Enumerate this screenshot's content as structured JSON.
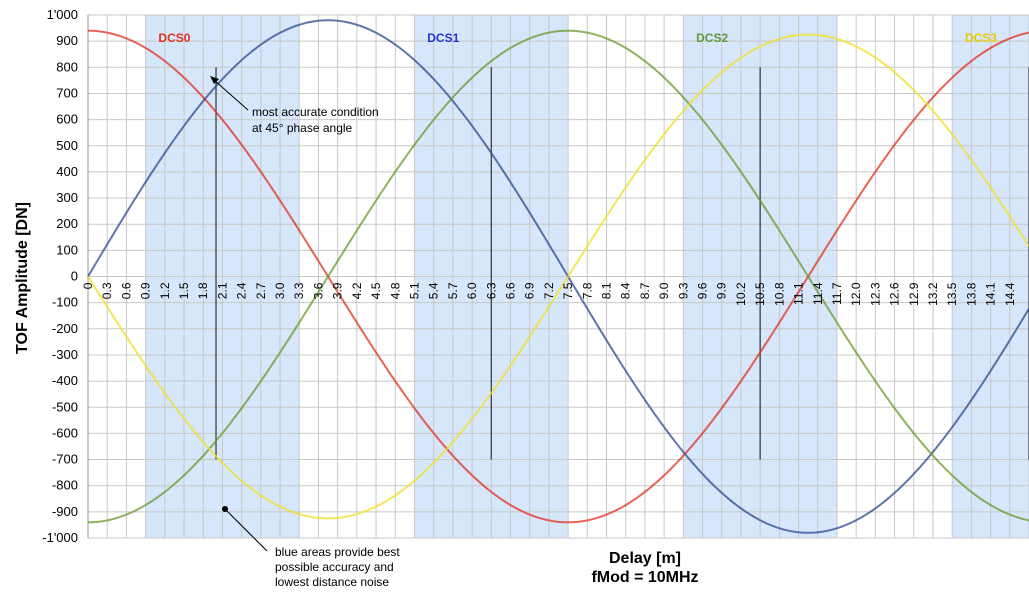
{
  "chart_data": {
    "type": "line",
    "ylabel": "TOF Amplitude [DN]",
    "xlabel": "Delay [m]",
    "xlabel2": "fMod = 10MHz",
    "ylim": [
      -1000,
      1000
    ],
    "xlim": [
      0,
      14.7
    ],
    "yticks": [
      "1'000",
      "900",
      "800",
      "700",
      "600",
      "500",
      "400",
      "300",
      "200",
      "100",
      "0",
      "-100",
      "-200",
      "-300",
      "-400",
      "-500",
      "-600",
      "-700",
      "-800",
      "-900",
      "-1'000"
    ],
    "xticks": [
      "0",
      "0.3",
      "0.6",
      "0.9",
      "1.2",
      "1.5",
      "1.8",
      "2.1",
      "2.4",
      "2.7",
      "3.0",
      "3.3",
      "3.6",
      "3.9",
      "4.2",
      "4.5",
      "4.8",
      "5.1",
      "5.4",
      "5.7",
      "6.0",
      "6.3",
      "6.6",
      "6.9",
      "7.2",
      "7.5",
      "7.8",
      "8.1",
      "8.4",
      "8.7",
      "9.0",
      "9.3",
      "9.6",
      "9.9",
      "10.2",
      "10.5",
      "10.8",
      "11.1",
      "11.4",
      "11.7",
      "12.0",
      "12.3",
      "12.6",
      "12.9",
      "13.2",
      "13.5",
      "13.8",
      "14.1",
      "14.4"
    ],
    "grid": true,
    "blue_areas": [
      [
        0.9,
        3.3
      ],
      [
        5.1,
        7.5
      ],
      [
        9.3,
        11.7
      ],
      [
        13.5,
        14.7
      ]
    ],
    "accuracy_markers": [
      2.0,
      6.3,
      10.5,
      14.7
    ],
    "series": [
      {
        "name": "DCS0",
        "color": "#e0301e",
        "label_color": "#e0301e",
        "amplitude": 940,
        "phase_deg": 0,
        "label_x": 1.35
      },
      {
        "name": "DCS1",
        "color": "#2c4a8c",
        "label_color": "#2233cc",
        "amplitude": 980,
        "phase_deg": 90,
        "label_x": 5.55
      },
      {
        "name": "DCS2",
        "color": "#6a9a2a",
        "label_color": "#5d9a3a",
        "amplitude": 940,
        "phase_deg": 180,
        "label_x": 9.75
      },
      {
        "name": "DCS3",
        "color": "#f0e020",
        "label_color": "#e8c800",
        "amplitude": 925,
        "phase_deg": 270,
        "label_x": 13.95
      }
    ],
    "period": 15,
    "annotations": [
      {
        "lines": [
          "most accurate condition",
          "at 45° phase angle"
        ]
      },
      {
        "lines": [
          "blue areas provide best",
          "possible accuracy and",
          "lowest distance noise"
        ]
      }
    ]
  }
}
